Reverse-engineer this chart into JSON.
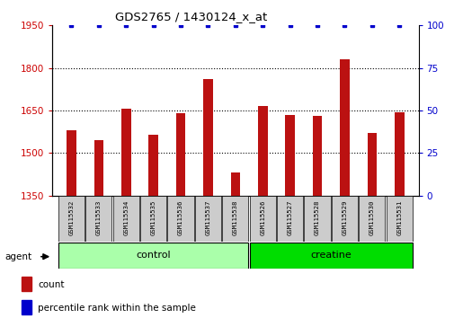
{
  "title": "GDS2765 / 1430124_x_at",
  "samples": [
    "GSM115532",
    "GSM115533",
    "GSM115534",
    "GSM115535",
    "GSM115536",
    "GSM115537",
    "GSM115538",
    "GSM115526",
    "GSM115527",
    "GSM115528",
    "GSM115529",
    "GSM115530",
    "GSM115531"
  ],
  "counts": [
    1580,
    1545,
    1655,
    1565,
    1640,
    1760,
    1430,
    1665,
    1635,
    1630,
    1830,
    1570,
    1645
  ],
  "percentiles": [
    100,
    100,
    100,
    100,
    100,
    100,
    100,
    100,
    100,
    100,
    100,
    100,
    100
  ],
  "bar_color": "#BB1111",
  "dot_color": "#0000CC",
  "ylim_left": [
    1350,
    1950
  ],
  "ylim_right": [
    0,
    100
  ],
  "yticks_left": [
    1350,
    1500,
    1650,
    1800,
    1950
  ],
  "yticks_right": [
    0,
    25,
    50,
    75,
    100
  ],
  "groups": [
    {
      "label": "control",
      "start": 0,
      "end": 7,
      "color": "#AAFFAA"
    },
    {
      "label": "creatine",
      "start": 7,
      "end": 13,
      "color": "#00DD00"
    }
  ],
  "group_label": "agent",
  "bar_width": 0.35,
  "background_color": "#ffffff",
  "tick_label_color_left": "#CC0000",
  "tick_label_color_right": "#0000CC",
  "grid_linestyle": "dotted",
  "grid_color": "#000000"
}
